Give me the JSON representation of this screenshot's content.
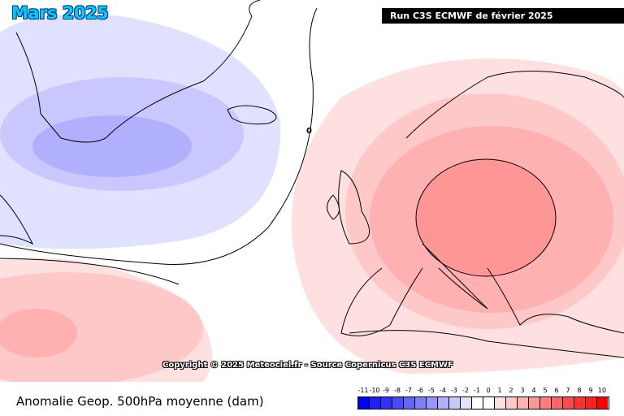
{
  "header": {
    "title": "Mars 2025",
    "run_label": "Run C3S ECMWF de février 2025"
  },
  "map": {
    "contour_label": "0",
    "copyright": "Copyright © 2025 Meteociel.fr - Source Copernicus C3S ECMWF"
  },
  "footer": {
    "caption": "Anomalie Geop. 500hPa moyenne (dam)"
  },
  "legend": {
    "labels": [
      "-11",
      "-10",
      "-9",
      "-8",
      "-7",
      "-6",
      "-5",
      "-4",
      "-3",
      "-2",
      "-1",
      "0",
      "1",
      "2",
      "3",
      "4",
      "5",
      "6",
      "7",
      "8",
      "9",
      "10"
    ],
    "colors": [
      "#0000ff",
      "#1e1eff",
      "#3232ff",
      "#4a4aff",
      "#6464ff",
      "#7d7dff",
      "#9696ff",
      "#b0b0ff",
      "#c8c8ff",
      "#e0e0ff",
      "#ffffff",
      "#ffffff",
      "#ffe0e0",
      "#ffc8c8",
      "#ffb0b0",
      "#ff9696",
      "#ff7d7d",
      "#ff6464",
      "#ff4a4a",
      "#ff3232",
      "#ff1e1e",
      "#ff0000"
    ]
  }
}
